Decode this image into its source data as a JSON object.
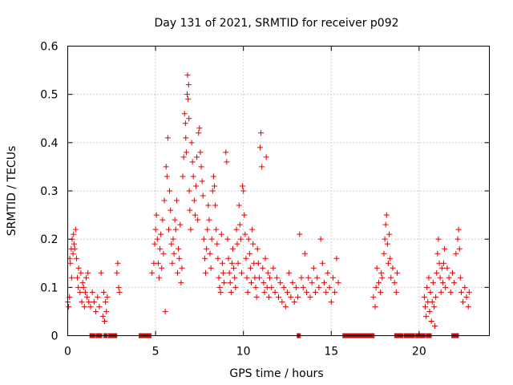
{
  "chart_data": {
    "type": "scatter",
    "title": "Day 131 of 2021, SRMTID for receiver p092",
    "xlabel": "GPS time / hours",
    "ylabel": "SRMTID / TECUs",
    "xlim": [
      0,
      24
    ],
    "ylim": [
      0,
      0.6
    ],
    "x_ticks": [
      0,
      5,
      10,
      15,
      20
    ],
    "x_tick_labels": [
      "0",
      "5",
      "10",
      "15",
      "20"
    ],
    "y_ticks": [
      0,
      0.1,
      0.2,
      0.3,
      0.4,
      0.5,
      0.6
    ],
    "y_tick_labels": [
      "0",
      "0.1",
      "0.2",
      "0.3",
      "0.4",
      "0.5",
      "0.6"
    ],
    "grid": true,
    "marker": "plus",
    "color": "#e00000",
    "series": [
      {
        "name": "SRMTID",
        "points": [
          [
            0.0,
            0.07
          ],
          [
            0.05,
            0.06
          ],
          [
            0.1,
            0.08
          ],
          [
            0.12,
            0.16
          ],
          [
            0.15,
            0.15
          ],
          [
            0.2,
            0.18
          ],
          [
            0.22,
            0.12
          ],
          [
            0.25,
            0.2
          ],
          [
            0.3,
            0.17
          ],
          [
            0.33,
            0.21
          ],
          [
            0.36,
            0.19
          ],
          [
            0.4,
            0.18
          ],
          [
            0.45,
            0.22
          ],
          [
            0.5,
            0.16
          ],
          [
            0.55,
            0.12
          ],
          [
            0.6,
            0.1
          ],
          [
            0.62,
            0.14
          ],
          [
            0.7,
            0.09
          ],
          [
            0.75,
            0.13
          ],
          [
            0.8,
            0.07
          ],
          [
            0.85,
            0.11
          ],
          [
            0.9,
            0.1
          ],
          [
            0.95,
            0.06
          ],
          [
            1.0,
            0.09
          ],
          [
            1.05,
            0.12
          ],
          [
            1.1,
            0.08
          ],
          [
            1.15,
            0.13
          ],
          [
            1.2,
            0.07
          ],
          [
            1.3,
            0.06
          ],
          [
            1.4,
            0.09
          ],
          [
            1.5,
            0.07
          ],
          [
            1.6,
            0.05
          ],
          [
            1.7,
            0.08
          ],
          [
            1.8,
            0.06
          ],
          [
            1.9,
            0.13
          ],
          [
            2.0,
            0.04
          ],
          [
            2.05,
            0.09
          ],
          [
            2.1,
            0.03
          ],
          [
            2.15,
            0.07
          ],
          [
            2.2,
            0.05
          ],
          [
            2.25,
            0.08
          ],
          [
            2.8,
            0.13
          ],
          [
            2.85,
            0.15
          ],
          [
            2.9,
            0.1
          ],
          [
            2.95,
            0.09
          ],
          [
            4.8,
            0.13
          ],
          [
            4.9,
            0.15
          ],
          [
            4.95,
            0.19
          ],
          [
            5.0,
            0.22
          ],
          [
            5.05,
            0.25
          ],
          [
            5.1,
            0.2
          ],
          [
            5.15,
            0.15
          ],
          [
            5.2,
            0.12
          ],
          [
            5.25,
            0.18
          ],
          [
            5.3,
            0.21
          ],
          [
            5.35,
            0.14
          ],
          [
            5.4,
            0.24
          ],
          [
            5.45,
            0.17
          ],
          [
            5.5,
            0.28
          ],
          [
            5.55,
            0.05
          ],
          [
            5.6,
            0.35
          ],
          [
            5.65,
            0.33
          ],
          [
            5.7,
            0.41
          ],
          [
            5.75,
            0.22
          ],
          [
            5.8,
            0.3
          ],
          [
            5.85,
            0.26
          ],
          [
            5.9,
            0.19
          ],
          [
            5.95,
            0.15
          ],
          [
            6.0,
            0.2
          ],
          [
            6.05,
            0.17
          ],
          [
            6.1,
            0.24
          ],
          [
            6.15,
            0.22
          ],
          [
            6.2,
            0.28
          ],
          [
            6.25,
            0.13
          ],
          [
            6.3,
            0.18
          ],
          [
            6.35,
            0.16
          ],
          [
            6.4,
            0.23
          ],
          [
            6.45,
            0.11
          ],
          [
            6.5,
            0.14
          ],
          [
            6.55,
            0.33
          ],
          [
            6.6,
            0.37
          ],
          [
            6.65,
            0.46
          ],
          [
            6.7,
            0.44
          ],
          [
            6.72,
            0.41
          ],
          [
            6.75,
            0.38
          ],
          [
            6.8,
            0.5
          ],
          [
            6.82,
            0.54
          ],
          [
            6.85,
            0.49
          ],
          [
            6.88,
            0.52
          ],
          [
            6.9,
            0.45
          ],
          [
            6.92,
            0.3
          ],
          [
            6.95,
            0.26
          ],
          [
            7.0,
            0.22
          ],
          [
            7.05,
            0.4
          ],
          [
            7.1,
            0.36
          ],
          [
            7.15,
            0.33
          ],
          [
            7.2,
            0.28
          ],
          [
            7.25,
            0.25
          ],
          [
            7.3,
            0.31
          ],
          [
            7.35,
            0.37
          ],
          [
            7.4,
            0.24
          ],
          [
            7.45,
            0.42
          ],
          [
            7.5,
            0.43
          ],
          [
            7.55,
            0.38
          ],
          [
            7.6,
            0.35
          ],
          [
            7.65,
            0.32
          ],
          [
            7.7,
            0.29
          ],
          [
            7.75,
            0.2
          ],
          [
            7.8,
            0.16
          ],
          [
            7.85,
            0.13
          ],
          [
            7.9,
            0.18
          ],
          [
            7.95,
            0.22
          ],
          [
            8.0,
            0.27
          ],
          [
            8.05,
            0.24
          ],
          [
            8.1,
            0.17
          ],
          [
            8.15,
            0.14
          ],
          [
            8.2,
            0.2
          ],
          [
            8.25,
            0.3
          ],
          [
            8.3,
            0.33
          ],
          [
            8.35,
            0.31
          ],
          [
            8.4,
            0.27
          ],
          [
            8.45,
            0.22
          ],
          [
            8.5,
            0.19
          ],
          [
            8.55,
            0.16
          ],
          [
            8.6,
            0.12
          ],
          [
            8.65,
            0.1
          ],
          [
            8.7,
            0.09
          ],
          [
            8.75,
            0.21
          ],
          [
            8.8,
            0.15
          ],
          [
            8.85,
            0.13
          ],
          [
            8.9,
            0.11
          ],
          [
            9.0,
            0.38
          ],
          [
            9.05,
            0.36
          ],
          [
            9.1,
            0.2
          ],
          [
            9.15,
            0.16
          ],
          [
            9.2,
            0.13
          ],
          [
            9.25,
            0.11
          ],
          [
            9.3,
            0.09
          ],
          [
            9.35,
            0.15
          ],
          [
            9.4,
            0.18
          ],
          [
            9.45,
            0.14
          ],
          [
            9.5,
            0.12
          ],
          [
            9.55,
            0.1
          ],
          [
            9.6,
            0.22
          ],
          [
            9.65,
            0.19
          ],
          [
            9.7,
            0.15
          ],
          [
            9.75,
            0.27
          ],
          [
            9.8,
            0.23
          ],
          [
            9.85,
            0.2
          ],
          [
            9.9,
            0.13
          ],
          [
            9.95,
            0.31
          ],
          [
            10.0,
            0.3
          ],
          [
            10.05,
            0.25
          ],
          [
            10.1,
            0.21
          ],
          [
            10.15,
            0.16
          ],
          [
            10.2,
            0.12
          ],
          [
            10.25,
            0.09
          ],
          [
            10.3,
            0.2
          ],
          [
            10.35,
            0.17
          ],
          [
            10.4,
            0.14
          ],
          [
            10.45,
            0.11
          ],
          [
            10.5,
            0.22
          ],
          [
            10.55,
            0.19
          ],
          [
            10.6,
            0.15
          ],
          [
            10.65,
            0.12
          ],
          [
            10.7,
            0.1
          ],
          [
            10.75,
            0.08
          ],
          [
            10.8,
            0.18
          ],
          [
            10.85,
            0.15
          ],
          [
            10.9,
            0.12
          ],
          [
            10.95,
            0.39
          ],
          [
            11.0,
            0.42
          ],
          [
            11.05,
            0.35
          ],
          [
            11.1,
            0.14
          ],
          [
            11.15,
            0.11
          ],
          [
            11.2,
            0.09
          ],
          [
            11.25,
            0.16
          ],
          [
            11.3,
            0.37
          ],
          [
            11.35,
            0.1
          ],
          [
            11.4,
            0.13
          ],
          [
            11.45,
            0.08
          ],
          [
            11.5,
            0.12
          ],
          [
            11.6,
            0.1
          ],
          [
            11.7,
            0.14
          ],
          [
            11.8,
            0.09
          ],
          [
            11.9,
            0.12
          ],
          [
            12.0,
            0.08
          ],
          [
            12.1,
            0.11
          ],
          [
            12.2,
            0.07
          ],
          [
            12.3,
            0.1
          ],
          [
            12.4,
            0.06
          ],
          [
            12.5,
            0.09
          ],
          [
            12.6,
            0.13
          ],
          [
            12.7,
            0.08
          ],
          [
            12.8,
            0.11
          ],
          [
            12.9,
            0.07
          ],
          [
            13.0,
            0.1
          ],
          [
            13.1,
            0.08
          ],
          [
            13.2,
            0.21
          ],
          [
            13.3,
            0.12
          ],
          [
            13.4,
            0.1
          ],
          [
            13.5,
            0.17
          ],
          [
            13.6,
            0.09
          ],
          [
            13.7,
            0.12
          ],
          [
            13.8,
            0.08
          ],
          [
            13.9,
            0.11
          ],
          [
            14.0,
            0.14
          ],
          [
            14.1,
            0.09
          ],
          [
            14.2,
            0.12
          ],
          [
            14.3,
            0.1
          ],
          [
            14.4,
            0.2
          ],
          [
            14.5,
            0.15
          ],
          [
            14.6,
            0.11
          ],
          [
            14.7,
            0.09
          ],
          [
            14.8,
            0.13
          ],
          [
            14.9,
            0.1
          ],
          [
            15.0,
            0.07
          ],
          [
            15.1,
            0.12
          ],
          [
            15.2,
            0.09
          ],
          [
            15.3,
            0.16
          ],
          [
            15.4,
            0.11
          ],
          [
            17.4,
            0.08
          ],
          [
            17.5,
            0.06
          ],
          [
            17.55,
            0.1
          ],
          [
            17.6,
            0.14
          ],
          [
            17.7,
            0.11
          ],
          [
            17.8,
            0.09
          ],
          [
            17.85,
            0.13
          ],
          [
            17.9,
            0.12
          ],
          [
            18.0,
            0.17
          ],
          [
            18.05,
            0.2
          ],
          [
            18.1,
            0.23
          ],
          [
            18.15,
            0.25
          ],
          [
            18.2,
            0.19
          ],
          [
            18.25,
            0.15
          ],
          [
            18.3,
            0.21
          ],
          [
            18.35,
            0.16
          ],
          [
            18.4,
            0.12
          ],
          [
            18.5,
            0.14
          ],
          [
            18.6,
            0.11
          ],
          [
            18.7,
            0.09
          ],
          [
            18.75,
            0.13
          ],
          [
            20.3,
            0.08
          ],
          [
            20.35,
            0.06
          ],
          [
            20.4,
            0.04
          ],
          [
            20.45,
            0.1
          ],
          [
            20.5,
            0.07
          ],
          [
            20.55,
            0.12
          ],
          [
            20.6,
            0.05
          ],
          [
            20.65,
            0.09
          ],
          [
            20.7,
            0.03
          ],
          [
            20.75,
            0.07
          ],
          [
            20.8,
            0.11
          ],
          [
            20.85,
            0.06
          ],
          [
            20.9,
            0.02
          ],
          [
            20.95,
            0.08
          ],
          [
            21.0,
            0.13
          ],
          [
            21.05,
            0.17
          ],
          [
            21.1,
            0.2
          ],
          [
            21.15,
            0.15
          ],
          [
            21.2,
            0.12
          ],
          [
            21.25,
            0.09
          ],
          [
            21.3,
            0.14
          ],
          [
            21.35,
            0.11
          ],
          [
            21.4,
            0.15
          ],
          [
            21.45,
            0.18
          ],
          [
            21.5,
            0.1
          ],
          [
            21.6,
            0.14
          ],
          [
            21.7,
            0.12
          ],
          [
            21.8,
            0.09
          ],
          [
            21.9,
            0.13
          ],
          [
            22.0,
            0.11
          ],
          [
            22.1,
            0.17
          ],
          [
            22.2,
            0.2
          ],
          [
            22.25,
            0.22
          ],
          [
            22.3,
            0.18
          ],
          [
            22.35,
            0.12
          ],
          [
            22.4,
            0.09
          ],
          [
            22.5,
            0.07
          ],
          [
            22.6,
            0.1
          ],
          [
            22.7,
            0.08
          ],
          [
            22.8,
            0.06
          ],
          [
            22.85,
            0.09
          ]
        ]
      }
    ],
    "data_gaps_hours": [
      1.35,
      1.45,
      1.7,
      1.85,
      2.15,
      2.4,
      2.55,
      2.7,
      4.15,
      4.25,
      4.35,
      4.5,
      4.65,
      13.15,
      15.75,
      15.9,
      16.05,
      16.2,
      16.4,
      16.6,
      16.8,
      17.0,
      17.2,
      17.35,
      18.7,
      18.85,
      19.0,
      19.25,
      19.45,
      19.65,
      19.9,
      20.05,
      20.15,
      20.25,
      20.5,
      20.6,
      21.95,
      22.05,
      22.15
    ]
  }
}
